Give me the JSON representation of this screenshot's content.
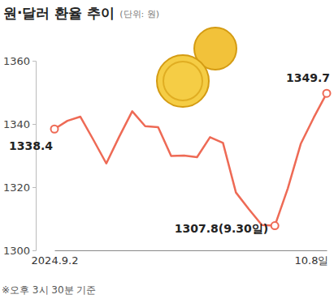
{
  "chart_data": {
    "type": "line",
    "title": "원·달러 환율 추이",
    "subtitle": "(단위: 원)",
    "note": "※오후 3시 30분 기준",
    "categories": [
      "2024.9.2",
      null,
      null,
      null,
      null,
      null,
      null,
      null,
      null,
      null,
      null,
      null,
      null,
      null,
      null,
      null,
      null,
      null,
      null,
      null,
      null,
      "10.8일"
    ],
    "values": [
      1338.4,
      1341.0,
      1342.3,
      1335.0,
      1327.5,
      1336.0,
      1344.0,
      1339.3,
      1339.0,
      1329.9,
      1330.0,
      1329.5,
      1335.8,
      1334.0,
      1318.3,
      1313.0,
      1308.0,
      1307.8,
      1319.6,
      1333.7,
      1342.0,
      1349.7
    ],
    "value_labels": [
      "1338.4",
      null,
      null,
      null,
      null,
      null,
      null,
      null,
      null,
      null,
      null,
      null,
      null,
      null,
      null,
      null,
      null,
      "1307.8(9.30일)",
      null,
      null,
      null,
      "1349.7"
    ],
    "color": "#ee6a55",
    "ylim": [
      1300,
      1360
    ],
    "yticks": [
      1300,
      1320,
      1340,
      1360
    ],
    "grid": false
  }
}
